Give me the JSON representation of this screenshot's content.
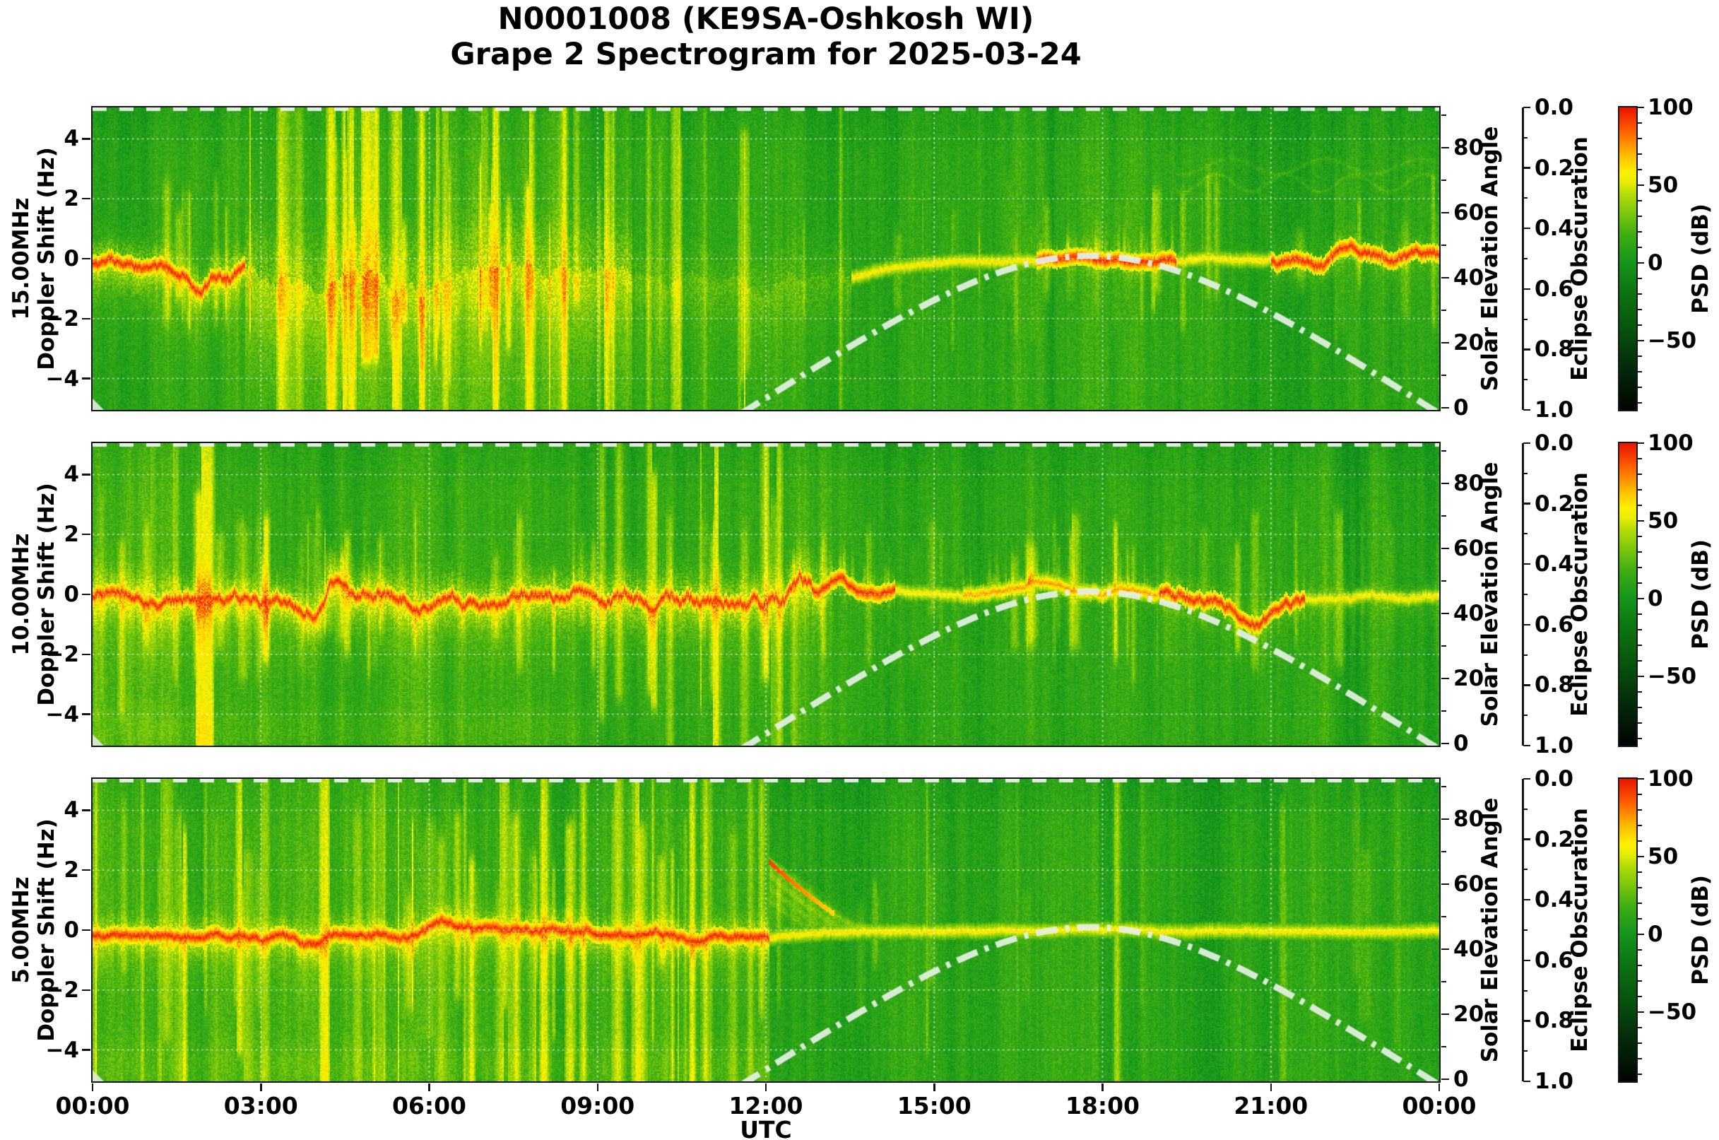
{
  "title": {
    "line1": "N0001008 (KE9SA-Oshkosh WI)",
    "line2": "Grape 2 Spectrogram for 2025-03-24",
    "station_id": "N0001008",
    "callsign": "KE9SA",
    "location": "Oshkosh WI",
    "date": "2025-03-24"
  },
  "axes": {
    "xlabel": "UTC",
    "time_tick_hours": [
      0,
      3,
      6,
      9,
      12,
      15,
      18,
      21,
      24
    ],
    "time_tick_labels": [
      "00:00",
      "03:00",
      "06:00",
      "09:00",
      "12:00",
      "15:00",
      "18:00",
      "21:00",
      "00:00"
    ],
    "doppler_axis_label": "Doppler Shift (Hz)",
    "doppler_tick_values": [
      4,
      2,
      0,
      -2,
      -4
    ],
    "doppler_tick_labels": [
      "4",
      "2",
      "0",
      "−2",
      "−4"
    ],
    "solar_label": "Solar Elevation Angle",
    "solar_tick_values": [
      0,
      20,
      40,
      60,
      80
    ],
    "solar_tick_labels": [
      "0",
      "20",
      "40",
      "60",
      "80"
    ],
    "eclipse_label": "Eclipse Obscuration",
    "eclipse_tick_values": [
      0.0,
      0.2,
      0.4,
      0.6,
      0.8,
      1.0
    ],
    "eclipse_tick_labels": [
      "0.0",
      "0.2",
      "0.4",
      "0.6",
      "0.8",
      "1.0"
    ],
    "psd_label": "PSD (dB)",
    "psd_tick_values": [
      100,
      50,
      0,
      -50
    ],
    "psd_tick_labels": [
      "100",
      "50",
      "0",
      "−50"
    ]
  },
  "colors": {
    "background": "#ffffff",
    "spine": "#151515",
    "grid_dots": "#ffffff",
    "solar_curve": "#e2f0e2",
    "eclipse_dash_line": "#ebf3eb",
    "trace_core_red": "#ee3300",
    "trace_yellow": "#f4ee00"
  },
  "chart_data": {
    "type": "heatmap",
    "subtype": "doppler-spectrogram",
    "x_range_hours": [
      0,
      24
    ],
    "x_unit": "UTC",
    "doppler_range_hz": [
      -5.05,
      5.05
    ],
    "psd_range_db": [
      -95,
      100
    ],
    "solar_elevation_range_deg": [
      0,
      92
    ],
    "eclipse_obscuration_range": [
      0.0,
      1.0
    ],
    "gridlines": "dotted white at every labeled tick",
    "colormap_stops": [
      {
        "v": 100,
        "c": "#e81200"
      },
      {
        "v": 88,
        "c": "#fb4e00"
      },
      {
        "v": 78,
        "c": "#ff8800"
      },
      {
        "v": 68,
        "c": "#ffc400"
      },
      {
        "v": 58,
        "c": "#fdf000"
      },
      {
        "v": 52,
        "c": "#e8ee02"
      },
      {
        "v": 44,
        "c": "#b4dc06"
      },
      {
        "v": 32,
        "c": "#7cc80b"
      },
      {
        "v": 18,
        "c": "#3fae13"
      },
      {
        "v": 0,
        "c": "#14961c"
      },
      {
        "v": -20,
        "c": "#0c7312"
      },
      {
        "v": -45,
        "c": "#07500c"
      },
      {
        "v": -70,
        "c": "#03270a"
      },
      {
        "v": -95,
        "c": "#010401"
      }
    ],
    "solar_elevation_curve": {
      "style": "dash-dot, pale green-white, rises after sunrise ~11:45 UTC",
      "points_deg": [
        [
          11.9,
          1
        ],
        [
          13,
          13
        ],
        [
          14,
          24
        ],
        [
          15,
          33
        ],
        [
          16,
          41
        ],
        [
          17,
          46
        ],
        [
          17.8,
          47.5
        ],
        [
          19,
          45
        ],
        [
          20,
          39
        ],
        [
          21,
          31
        ],
        [
          22,
          22
        ],
        [
          23,
          11
        ],
        [
          23.8,
          0
        ]
      ]
    },
    "eclipse_obscuration_curve": {
      "constant": 0.0,
      "style": "dashed white line along top edge of each panel (obscuration = 0 all day)"
    },
    "panels": [
      {
        "frequency_mhz": 15.0,
        "freq_label": "15.00MHz",
        "description": "Red carrier trace just below 0 Hz until ~02:40; broad chaotic yellow spread 03:00-09:30 with tall bright vertical streaks; weak scattered signal 09:30-13:30; narrow 0 Hz line returns ~13:30 with red segments 17:00-19:00 and wiggly red after 21:00; faint wavy lines near +3 Hz late.",
        "features": {
          "segments": [
            {
              "t0": 0.0,
              "t1": 2.7,
              "trace": "red",
              "amp": 0.3,
              "bias": -0.25,
              "fuzz": 0.7,
              "gain": 24,
              "below": 12,
              "streaks": 0.3,
              "tall": 0,
              "bg": 4,
              "sgain": 1
            },
            {
              "t0": 2.7,
              "t1": 9.6,
              "trace": "none",
              "amp": 0.55,
              "bias": -0.9,
              "fuzz": 1.7,
              "gain": 15,
              "below": 14,
              "streaks": 0.85,
              "tall": 1,
              "bg": 7,
              "sgain": 1.1
            },
            {
              "t0": 9.6,
              "t1": 13.5,
              "trace": "none",
              "amp": 0.5,
              "bias": -0.8,
              "fuzz": 1.1,
              "gain": 7,
              "below": 7,
              "streaks": 0.5,
              "tall": 1,
              "bg": 2,
              "sgain": 0.9
            },
            {
              "t0": 13.5,
              "t1": 16.8,
              "trace": "yellow",
              "amp": 0.06,
              "bias": 0,
              "fuzz": 0.22,
              "gain": 13,
              "below": 0,
              "streaks": 0.3,
              "tall": 0,
              "bg": 2,
              "sgain": 0.8
            },
            {
              "t0": 16.8,
              "t1": 19.3,
              "trace": "red",
              "amp": 0.15,
              "bias": 0.05,
              "fuzz": 0.4,
              "gain": 18,
              "below": 0,
              "streaks": 0.4,
              "tall": 0,
              "bg": 3,
              "sgain": 0.9,
              "spikes": 1
            },
            {
              "t0": 19.3,
              "t1": 21.0,
              "trace": "yellow",
              "amp": 0.1,
              "bias": 0,
              "fuzz": 0.28,
              "gain": 12,
              "below": 0,
              "streaks": 0.3,
              "tall": 0,
              "bg": 2,
              "sgain": 0.8,
              "waves": 1
            },
            {
              "t0": 21.0,
              "t1": 24.0,
              "trace": "red",
              "amp": 0.28,
              "bias": -0.05,
              "fuzz": 0.45,
              "gain": 15,
              "below": 4,
              "streaks": 0.3,
              "tall": 0,
              "bg": 2,
              "sgain": 0.8,
              "waves": 1
            }
          ],
          "bumps": [
            {
              "t": 1.9,
              "a": -0.55,
              "w": 0.18
            },
            {
              "t": 2.4,
              "a": -0.3,
              "w": 0.12
            },
            {
              "t": 22.3,
              "a": 0.2,
              "w": 0.3
            },
            {
              "t": 23.2,
              "a": -0.25,
              "w": 0.2
            }
          ]
        }
      },
      {
        "frequency_mhz": 10.0,
        "freq_label": "10.00MHz",
        "description": "Strong wiggly red carrier trace near 0 Hz all night with yellow halo and vertical streaks; bump to +1 Hz ~04:20, dip ~10:00; after ~14:00 a narrower yellow line with red episodes 15:30-19:00 and dips 19:30-21:30.",
        "features": {
          "segments": [
            {
              "t0": 0.0,
              "t1": 2.2,
              "trace": "red",
              "amp": 0.3,
              "bias": -0.2,
              "fuzz": 0.75,
              "gain": 24,
              "below": 10,
              "streaks": 0.8,
              "tall": 1,
              "bg": 6,
              "sgain": 1,
              "bglow": 7
            },
            {
              "t0": 2.2,
              "t1": 9.0,
              "trace": "red",
              "amp": 0.4,
              "bias": -0.15,
              "fuzz": 0.8,
              "gain": 25,
              "below": 10,
              "streaks": 0.55,
              "tall": 0,
              "bg": 6,
              "sgain": 1,
              "bglow": 5
            },
            {
              "t0": 9.0,
              "t1": 13.0,
              "trace": "red",
              "amp": 0.5,
              "bias": -0.1,
              "fuzz": 0.95,
              "gain": 22,
              "below": 8,
              "streaks": 0.55,
              "tall": 1,
              "bg": 5,
              "sgain": 1
            },
            {
              "t0": 13.0,
              "t1": 14.3,
              "trace": "red",
              "amp": 0.18,
              "bias": 0.1,
              "fuzz": 0.5,
              "gain": 18,
              "below": 0,
              "streaks": 0.5,
              "tall": 0,
              "bg": 3,
              "sgain": 0.9,
              "spikes": 1
            },
            {
              "t0": 14.3,
              "t1": 15.5,
              "trace": "yellow",
              "amp": 0.08,
              "bias": 0,
              "fuzz": 0.25,
              "gain": 12,
              "below": 0,
              "streaks": 0.35,
              "tall": 0,
              "bg": 2,
              "sgain": 0.8
            },
            {
              "t0": 15.5,
              "t1": 19.0,
              "trace": "orange",
              "amp": 0.15,
              "bias": 0.05,
              "fuzz": 0.4,
              "gain": 16,
              "below": 0,
              "streaks": 0.5,
              "tall": 0,
              "bg": 3,
              "sgain": 0.9,
              "spikes": 1
            },
            {
              "t0": 19.0,
              "t1": 21.6,
              "trace": "red",
              "amp": 0.3,
              "bias": -0.15,
              "fuzz": 0.5,
              "gain": 15,
              "below": 5,
              "streaks": 0.35,
              "tall": 0,
              "bg": 2,
              "sgain": 0.8
            },
            {
              "t0": 21.6,
              "t1": 24.0,
              "trace": "yellow",
              "amp": 0.12,
              "bias": -0.05,
              "fuzz": 0.35,
              "gain": 12,
              "below": 4,
              "streaks": 0.35,
              "tall": 0,
              "bg": 2,
              "sgain": 0.8
            }
          ],
          "bumps": [
            {
              "t": 4.35,
              "a": 0.85,
              "w": 0.22
            },
            {
              "t": 5.1,
              "a": 0.35,
              "w": 0.3
            },
            {
              "t": 9.9,
              "a": -0.45,
              "w": 0.3
            },
            {
              "t": 12.6,
              "a": 0.55,
              "w": 0.25
            },
            {
              "t": 13.3,
              "a": 0.35,
              "w": 0.2
            },
            {
              "t": 16.9,
              "a": 0.3,
              "w": 0.5
            },
            {
              "t": 20.7,
              "a": -0.5,
              "w": 0.35
            }
          ]
        }
      },
      {
        "frequency_mhz": 5.0,
        "freq_label": "5.00MHz",
        "description": "Wide fuzzy yellow band around 0 Hz with red core through the night (00:00-12:00) plus tall vertical streaks; fan of descending arcs up to ~+2 Hz right after 12:00; thin quiet 0 Hz line through daytime with faint vertical bands.",
        "features": {
          "segments": [
            {
              "t0": 0.0,
              "t1": 12.05,
              "trace": "red",
              "amp": 0.18,
              "bias": -0.1,
              "fuzz": 0.55,
              "gain": 24,
              "below": 8,
              "streaks": 0.8,
              "tall": 1,
              "bg": 8,
              "sgain": 1.1,
              "bglow": 6
            },
            {
              "t0": 12.05,
              "t1": 14.0,
              "trace": "yellow",
              "amp": 0.04,
              "bias": 0,
              "fuzz": 0.12,
              "gain": 11,
              "below": 0,
              "streaks": 0.25,
              "tall": 0,
              "bg": 1,
              "sgain": 0.7,
              "fan": 1
            },
            {
              "t0": 14.0,
              "t1": 24.0,
              "trace": "yellow",
              "amp": 0.04,
              "bias": 0,
              "fuzz": 0.09,
              "gain": 9,
              "below": 0,
              "streaks": 0.22,
              "tall": 1,
              "bg": 0,
              "sgain": 0.6
            }
          ],
          "bumps": [
            {
              "t": 3.9,
              "a": -0.3,
              "w": 0.3
            },
            {
              "t": 6.2,
              "a": 0.25,
              "w": 0.3
            },
            {
              "t": 10.8,
              "a": -0.2,
              "w": 0.4
            }
          ]
        }
      }
    ]
  }
}
